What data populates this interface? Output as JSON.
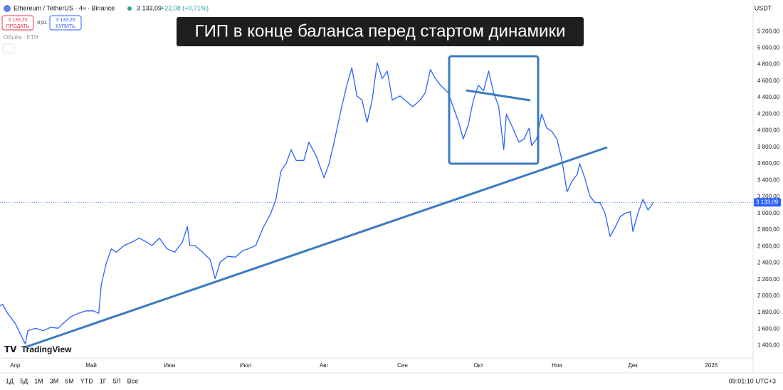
{
  "header": {
    "symbol": "Ethereum / TetherUS · 4ч · Binance",
    "price": "3 133,09",
    "change": "+22,08 (+0,71%)",
    "sell_price": "3 133,25",
    "sell": "ПРОДАТЬ",
    "spread": "0,01",
    "buy_price": "3 133,26",
    "buy": "КУПИТЬ",
    "volume": "Объём · ETH",
    "currency": "USDT",
    "logo": "TradingView"
  },
  "chart_data": {
    "type": "line",
    "title": "ГИП в конце баланса перед стартом динамики",
    "xlim": [
      -6,
      291.5
    ],
    "ylim": [
      1250,
      5580
    ],
    "grid": false,
    "xticks": [
      {
        "value": 0,
        "label": "Апр"
      },
      {
        "value": 30,
        "label": "Май"
      },
      {
        "value": 61,
        "label": "Июн"
      },
      {
        "value": 91,
        "label": "Июл"
      },
      {
        "value": 122,
        "label": "Авг"
      },
      {
        "value": 153,
        "label": "Сен"
      },
      {
        "value": 183,
        "label": "Окт"
      },
      {
        "value": 214,
        "label": "Ноя"
      },
      {
        "value": 244,
        "label": "Дек"
      },
      {
        "value": 275,
        "label": "2026"
      }
    ],
    "yticks": [
      {
        "value": 1400,
        "label": "1 400,00"
      },
      {
        "value": 1600,
        "label": "1 600,00"
      },
      {
        "value": 1800,
        "label": "1 800,00"
      },
      {
        "value": 2000,
        "label": "2 000,00"
      },
      {
        "value": 2200,
        "label": "2 200,00"
      },
      {
        "value": 2400,
        "label": "2 400,00"
      },
      {
        "value": 2600,
        "label": "2 600,00"
      },
      {
        "value": 2800,
        "label": "2 800,00"
      },
      {
        "value": 3000,
        "label": "3 000,00"
      },
      {
        "value": 3200,
        "label": "3 200,00"
      },
      {
        "value": 3400,
        "label": "3 400,00"
      },
      {
        "value": 3600,
        "label": "3 600,00"
      },
      {
        "value": 3800,
        "label": "3 800,00"
      },
      {
        "value": 4000,
        "label": "4 000,00"
      },
      {
        "value": 4200,
        "label": "4 200,00"
      },
      {
        "value": 4400,
        "label": "4 400,00"
      },
      {
        "value": 4600,
        "label": "4 600,00"
      },
      {
        "value": 4800,
        "label": "4 800,00"
      },
      {
        "value": 5000,
        "label": "5 000,00"
      },
      {
        "value": 5200,
        "label": "5 200,00"
      }
    ],
    "last_price": {
      "value": 3133.09,
      "label": "3 133,09"
    },
    "series": [
      {
        "name": "ETHUSDT",
        "color": "#2962ff",
        "x": [
          -6,
          -5,
          -3,
          0,
          2,
          4,
          5,
          8,
          11,
          14,
          17,
          19,
          22,
          25,
          28,
          31,
          33,
          34,
          36,
          38,
          40,
          43,
          46,
          49,
          52,
          54,
          57,
          60,
          63,
          66,
          68,
          69,
          71,
          74,
          77,
          79,
          81,
          84,
          87,
          90,
          92,
          95,
          98,
          101,
          103,
          105,
          107,
          109,
          111,
          114,
          116,
          119,
          122,
          124,
          126,
          129,
          131,
          133,
          135,
          137,
          139,
          141,
          143,
          145,
          147,
          149,
          152,
          154,
          157,
          160,
          162,
          164,
          166,
          168,
          171,
          173,
          175,
          177,
          179,
          181,
          183,
          185,
          187,
          189,
          191,
          193,
          194,
          196,
          199,
          201,
          203,
          204,
          206,
          208,
          210,
          212,
          214,
          216,
          218,
          220,
          222,
          223,
          225,
          227,
          229,
          231,
          233,
          235,
          237,
          239,
          241,
          243,
          244,
          246,
          248,
          250,
          251,
          252
        ],
        "values": [
          1880,
          1900,
          1790,
          1670,
          1540,
          1420,
          1580,
          1610,
          1580,
          1620,
          1610,
          1670,
          1750,
          1790,
          1820,
          1820,
          1790,
          2140,
          2400,
          2570,
          2530,
          2610,
          2650,
          2700,
          2650,
          2610,
          2700,
          2570,
          2530,
          2650,
          2840,
          2610,
          2610,
          2530,
          2440,
          2210,
          2410,
          2480,
          2470,
          2550,
          2570,
          2610,
          2830,
          3000,
          3170,
          3510,
          3600,
          3770,
          3640,
          3640,
          3860,
          3690,
          3430,
          3600,
          3860,
          4290,
          4550,
          4760,
          4420,
          4370,
          4100,
          4370,
          4820,
          4630,
          4720,
          4370,
          4420,
          4370,
          4290,
          4370,
          4460,
          4740,
          4630,
          4550,
          4460,
          4290,
          4120,
          3900,
          4070,
          4370,
          4550,
          4480,
          4720,
          4460,
          4290,
          3770,
          4200,
          4070,
          3860,
          3900,
          4030,
          3820,
          3900,
          4200,
          4030,
          3990,
          3900,
          3640,
          3260,
          3390,
          3470,
          3600,
          3430,
          3210,
          3130,
          3130,
          3000,
          2720,
          2830,
          2960,
          3000,
          3020,
          2780,
          3000,
          3170,
          3040,
          3080,
          3133.09
        ]
      }
    ]
  },
  "toolbar": {
    "periods": [
      "1Д",
      "5Д",
      "1М",
      "3М",
      "6М",
      "YTD",
      "1Г",
      "5Л",
      "Все"
    ],
    "time": "09:01:10 UTC+3"
  }
}
